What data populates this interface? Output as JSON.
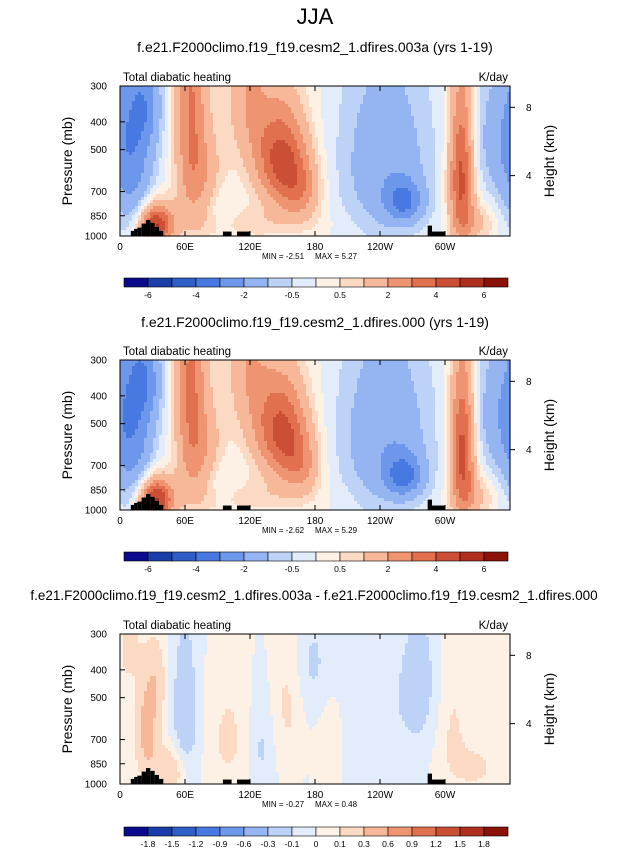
{
  "figure": {
    "title": "JJA"
  },
  "chart_data": [
    {
      "type": "heatmap",
      "title": "f.e21.F2000climo.f19_f19.cesm2_1.dfires.003a (yrs 1-19)",
      "left_label": "Total diabatic heating",
      "units": "K/day",
      "ylabel": "Pressure (mb)",
      "ylabel_right": "Height (km)",
      "x_ticks": [
        "0",
        "60E",
        "120E",
        "180",
        "120W",
        "60W"
      ],
      "x_tick_lon": [
        0,
        60,
        120,
        180,
        240,
        300
      ],
      "xlim": [
        0,
        360
      ],
      "y_ticks": [
        300,
        400,
        500,
        700,
        850,
        1000
      ],
      "ylim": [
        1000,
        300
      ],
      "y2_ticks": [
        "8",
        "4"
      ],
      "y2_tick_p": [
        356,
        616
      ],
      "min_label": "MIN = -2.51",
      "max_label": "MAX =  5.27",
      "min": -2.51,
      "max": 5.27,
      "colorbar_levels": [
        -7,
        -6,
        -5,
        -4,
        -3,
        -2,
        -1,
        -0.5,
        0,
        0.5,
        1,
        2,
        3,
        4,
        5,
        6,
        7
      ],
      "colorbar_labels": [
        "-6",
        "-4",
        "-2",
        "-0.5",
        "0.5",
        "2",
        "4",
        "6"
      ],
      "colorbar_label_levels": [
        -6,
        -4,
        -2,
        -0.5,
        0.5,
        2,
        4,
        6
      ],
      "features": [
        {
          "lon": 65,
          "p": 300,
          "lw": 10,
          "pw": 320,
          "v": 2.8
        },
        {
          "lon": 77,
          "p": 650,
          "lw": 14,
          "pw": 200,
          "v": 1.6
        },
        {
          "lon": 118,
          "p": 300,
          "lw": 13,
          "pw": 150,
          "v": 1.8
        },
        {
          "lon": 148,
          "p": 530,
          "lw": 17,
          "pw": 150,
          "v": 4.3
        },
        {
          "lon": 166,
          "p": 700,
          "lw": 13,
          "pw": 120,
          "v": 2.2
        },
        {
          "lon": 118,
          "p": 900,
          "lw": 45,
          "pw": 90,
          "v": 0.8
        },
        {
          "lon": 33,
          "p": 920,
          "lw": 11,
          "pw": 110,
          "v": 5.2
        },
        {
          "lon": 315,
          "p": 620,
          "lw": 8,
          "pw": 280,
          "v": 4.5
        },
        {
          "lon": 330,
          "p": 900,
          "lw": 12,
          "pw": 100,
          "v": 1.1
        },
        {
          "lon": 12,
          "p": 530,
          "lw": 14,
          "pw": 300,
          "v": -2.2
        },
        {
          "lon": 25,
          "p": 350,
          "lw": 10,
          "pw": 90,
          "v": -1.5
        },
        {
          "lon": 90,
          "p": 820,
          "lw": 13,
          "pw": 110,
          "v": -0.9
        },
        {
          "lon": 245,
          "p": 560,
          "lw": 30,
          "pw": 300,
          "v": -1.7
        },
        {
          "lon": 262,
          "p": 760,
          "lw": 12,
          "pw": 90,
          "v": -2.5
        },
        {
          "lon": 350,
          "p": 460,
          "lw": 20,
          "pw": 180,
          "v": -1.3
        }
      ],
      "orography": [
        {
          "lon0": 10,
          "lon1": 13,
          "p": 960
        },
        {
          "lon0": 13,
          "lon1": 16,
          "p": 945
        },
        {
          "lon0": 16,
          "lon1": 20,
          "p": 935
        },
        {
          "lon0": 20,
          "lon1": 24,
          "p": 905
        },
        {
          "lon0": 24,
          "lon1": 28,
          "p": 880
        },
        {
          "lon0": 28,
          "lon1": 32,
          "p": 900
        },
        {
          "lon0": 32,
          "lon1": 36,
          "p": 930
        },
        {
          "lon0": 36,
          "lon1": 40,
          "p": 960
        },
        {
          "lon0": 95,
          "lon1": 103,
          "p": 965
        },
        {
          "lon0": 108,
          "lon1": 120,
          "p": 965
        },
        {
          "lon0": 284,
          "lon1": 288,
          "p": 920
        },
        {
          "lon0": 288,
          "lon1": 300,
          "p": 965
        }
      ]
    },
    {
      "type": "heatmap",
      "title": "f.e21.F2000climo.f19_f19.cesm2_1.dfires.000 (yrs 1-19)",
      "left_label": "Total diabatic heating",
      "units": "K/day",
      "ylabel": "Pressure (mb)",
      "ylabel_right": "Height (km)",
      "x_ticks": [
        "0",
        "60E",
        "120E",
        "180",
        "120W",
        "60W"
      ],
      "x_tick_lon": [
        0,
        60,
        120,
        180,
        240,
        300
      ],
      "xlim": [
        0,
        360
      ],
      "y_ticks": [
        300,
        400,
        500,
        700,
        850,
        1000
      ],
      "ylim": [
        1000,
        300
      ],
      "y2_ticks": [
        "8",
        "4"
      ],
      "y2_tick_p": [
        356,
        616
      ],
      "min_label": "MIN = -2.62",
      "max_label": "MAX =  5.29",
      "min": -2.62,
      "max": 5.29,
      "colorbar_levels": [
        -7,
        -6,
        -5,
        -4,
        -3,
        -2,
        -1,
        -0.5,
        0,
        0.5,
        1,
        2,
        3,
        4,
        5,
        6,
        7
      ],
      "colorbar_labels": [
        "-6",
        "-4",
        "-2",
        "-0.5",
        "0.5",
        "2",
        "4",
        "6"
      ],
      "colorbar_label_levels": [
        -6,
        -4,
        -2,
        -0.5,
        0.5,
        2,
        4,
        6
      ],
      "features": [
        {
          "lon": 65,
          "p": 300,
          "lw": 10,
          "pw": 320,
          "v": 2.9
        },
        {
          "lon": 77,
          "p": 650,
          "lw": 14,
          "pw": 200,
          "v": 1.6
        },
        {
          "lon": 118,
          "p": 300,
          "lw": 13,
          "pw": 150,
          "v": 1.7
        },
        {
          "lon": 148,
          "p": 520,
          "lw": 17,
          "pw": 150,
          "v": 4.2
        },
        {
          "lon": 166,
          "p": 700,
          "lw": 13,
          "pw": 120,
          "v": 2.1
        },
        {
          "lon": 118,
          "p": 900,
          "lw": 45,
          "pw": 90,
          "v": 0.8
        },
        {
          "lon": 33,
          "p": 920,
          "lw": 11,
          "pw": 110,
          "v": 5.3
        },
        {
          "lon": 316,
          "p": 620,
          "lw": 8,
          "pw": 280,
          "v": 4.6
        },
        {
          "lon": 330,
          "p": 900,
          "lw": 12,
          "pw": 100,
          "v": 1.1
        },
        {
          "lon": 12,
          "p": 530,
          "lw": 14,
          "pw": 300,
          "v": -2.3
        },
        {
          "lon": 25,
          "p": 350,
          "lw": 10,
          "pw": 90,
          "v": -1.6
        },
        {
          "lon": 90,
          "p": 820,
          "lw": 13,
          "pw": 110,
          "v": -0.9
        },
        {
          "lon": 245,
          "p": 560,
          "lw": 30,
          "pw": 300,
          "v": -1.8
        },
        {
          "lon": 262,
          "p": 760,
          "lw": 12,
          "pw": 90,
          "v": -2.6
        },
        {
          "lon": 350,
          "p": 460,
          "lw": 20,
          "pw": 180,
          "v": -1.4
        }
      ],
      "orography": [
        {
          "lon0": 10,
          "lon1": 13,
          "p": 960
        },
        {
          "lon0": 13,
          "lon1": 16,
          "p": 945
        },
        {
          "lon0": 16,
          "lon1": 20,
          "p": 935
        },
        {
          "lon0": 20,
          "lon1": 24,
          "p": 905
        },
        {
          "lon0": 24,
          "lon1": 28,
          "p": 880
        },
        {
          "lon0": 28,
          "lon1": 32,
          "p": 900
        },
        {
          "lon0": 32,
          "lon1": 36,
          "p": 930
        },
        {
          "lon0": 36,
          "lon1": 40,
          "p": 960
        },
        {
          "lon0": 95,
          "lon1": 103,
          "p": 965
        },
        {
          "lon0": 108,
          "lon1": 120,
          "p": 965
        },
        {
          "lon0": 284,
          "lon1": 288,
          "p": 920
        },
        {
          "lon0": 288,
          "lon1": 300,
          "p": 965
        }
      ]
    },
    {
      "type": "heatmap",
      "title": "f.e21.F2000climo.f19_f19.cesm2_1.dfires.003a - f.e21.F2000climo.f19_f19.cesm2_1.dfires.000",
      "left_label": "Total diabatic heating",
      "units": "K/day",
      "ylabel": "Pressure (mb)",
      "ylabel_right": "Height (km)",
      "x_ticks": [
        "0",
        "60E",
        "120E",
        "180",
        "120W",
        "60W"
      ],
      "x_tick_lon": [
        0,
        60,
        120,
        180,
        240,
        300
      ],
      "xlim": [
        0,
        360
      ],
      "y_ticks": [
        300,
        400,
        500,
        700,
        850,
        1000
      ],
      "ylim": [
        1000,
        300
      ],
      "y2_ticks": [
        "8",
        "4"
      ],
      "y2_tick_p": [
        356,
        616
      ],
      "min_label": "MIN = -0.27",
      "max_label": "MAX =  0.48",
      "min": -0.27,
      "max": 0.48,
      "colorbar_levels": [
        -2.1,
        -1.8,
        -1.5,
        -1.2,
        -0.9,
        -0.6,
        -0.3,
        -0.1,
        0,
        0.1,
        0.3,
        0.6,
        0.9,
        1.2,
        1.5,
        1.8,
        2.1
      ],
      "colorbar_labels": [
        "-1.8",
        "-1.5",
        "-1.2",
        "-0.9",
        "-0.6",
        "-0.3",
        "-0.1",
        "0",
        "0.1",
        "0.3",
        "0.6",
        "0.9",
        "1.2",
        "1.5",
        "1.8"
      ],
      "colorbar_label_levels": [
        -1.8,
        -1.5,
        -1.2,
        -0.9,
        -0.6,
        -0.3,
        -0.1,
        0,
        0.1,
        0.3,
        0.6,
        0.9,
        1.2,
        1.5,
        1.8
      ],
      "features": [
        {
          "lon": 25,
          "p": 640,
          "lw": 7,
          "pw": 170,
          "v": 0.42
        },
        {
          "lon": 34,
          "p": 440,
          "lw": 6,
          "pw": 90,
          "v": 0.2
        },
        {
          "lon": 45,
          "p": 900,
          "lw": 12,
          "pw": 120,
          "v": 0.25
        },
        {
          "lon": 8,
          "p": 330,
          "lw": 7,
          "pw": 80,
          "v": 0.15
        },
        {
          "lon": 100,
          "p": 700,
          "lw": 14,
          "pw": 250,
          "v": 0.12
        },
        {
          "lon": 155,
          "p": 500,
          "lw": 10,
          "pw": 220,
          "v": 0.13
        },
        {
          "lon": 195,
          "p": 650,
          "lw": 10,
          "pw": 300,
          "v": 0.1
        },
        {
          "lon": 305,
          "p": 600,
          "lw": 12,
          "pw": 300,
          "v": 0.13
        },
        {
          "lon": 330,
          "p": 880,
          "lw": 14,
          "pw": 120,
          "v": 0.12
        },
        {
          "lon": 60,
          "p": 600,
          "lw": 9,
          "pw": 280,
          "v": -0.2
        },
        {
          "lon": 130,
          "p": 750,
          "lw": 8,
          "pw": 200,
          "v": -0.12
        },
        {
          "lon": 230,
          "p": 600,
          "lw": 30,
          "pw": 350,
          "v": -0.09
        },
        {
          "lon": 280,
          "p": 450,
          "lw": 15,
          "pw": 200,
          "v": -0.14
        },
        {
          "lon": 180,
          "p": 380,
          "lw": 15,
          "pw": 120,
          "v": -0.12
        }
      ],
      "orography": [
        {
          "lon0": 10,
          "lon1": 13,
          "p": 960
        },
        {
          "lon0": 13,
          "lon1": 16,
          "p": 945
        },
        {
          "lon0": 16,
          "lon1": 20,
          "p": 935
        },
        {
          "lon0": 20,
          "lon1": 24,
          "p": 905
        },
        {
          "lon0": 24,
          "lon1": 28,
          "p": 880
        },
        {
          "lon0": 28,
          "lon1": 32,
          "p": 900
        },
        {
          "lon0": 32,
          "lon1": 36,
          "p": 930
        },
        {
          "lon0": 36,
          "lon1": 40,
          "p": 960
        },
        {
          "lon0": 95,
          "lon1": 103,
          "p": 965
        },
        {
          "lon0": 108,
          "lon1": 120,
          "p": 965
        },
        {
          "lon0": 284,
          "lon1": 288,
          "p": 920
        },
        {
          "lon0": 288,
          "lon1": 300,
          "p": 965
        }
      ]
    }
  ],
  "colors": {
    "palette": [
      "#0a0a8c",
      "#1b3ea8",
      "#2f5ec9",
      "#4779e0",
      "#6d97eb",
      "#94b5f2",
      "#bcd2f7",
      "#e2ecfb",
      "#fdf1e6",
      "#fbd9c3",
      "#f6b899",
      "#ef9470",
      "#e1704f",
      "#cb4f34",
      "#ae2f1e",
      "#8a1208"
    ],
    "orography": "#000000"
  }
}
